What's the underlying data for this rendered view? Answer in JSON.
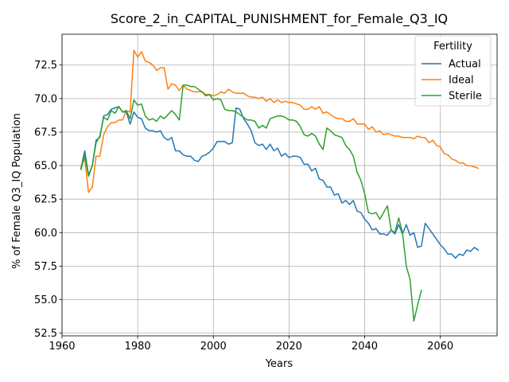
{
  "chart_data": {
    "type": "line",
    "title": "Score_2_in_CAPITAL_PUNISHMENT_for_Female_Q3_IQ",
    "xlabel": "Years",
    "ylabel": "% of Female Q3_IQ Population",
    "xlim": [
      1960,
      2075
    ],
    "ylim": [
      52.3,
      74.8
    ],
    "xticks": [
      1960,
      1980,
      2000,
      2020,
      2040,
      2060
    ],
    "yticks": [
      52.5,
      55.0,
      57.5,
      60.0,
      62.5,
      65.0,
      67.5,
      70.0,
      72.5
    ],
    "ytick_labels": [
      "52.5",
      "55.0",
      "57.5",
      "60.0",
      "62.5",
      "65.0",
      "67.5",
      "70.0",
      "72.5"
    ],
    "grid": true,
    "legend": {
      "title": "Fertility",
      "placement": "top-right"
    },
    "series": [
      {
        "name": "Actual",
        "color": "#1f77b4",
        "x": [
          1965,
          1966,
          1967,
          1968,
          1969,
          1970,
          1971,
          1972,
          1973,
          1974,
          1975,
          1976,
          1977,
          1978,
          1979,
          1980,
          1981,
          1982,
          1983,
          1984,
          1985,
          1986,
          1987,
          1988,
          1989,
          1990,
          1991,
          1992,
          1993,
          1994,
          1995,
          1996,
          1997,
          1998,
          1999,
          2000,
          2001,
          2002,
          2003,
          2004,
          2005,
          2006,
          2007,
          2008,
          2009,
          2010,
          2011,
          2012,
          2013,
          2014,
          2015,
          2016,
          2017,
          2018,
          2019,
          2020,
          2021,
          2022,
          2023,
          2024,
          2025,
          2026,
          2027,
          2028,
          2029,
          2030,
          2031,
          2032,
          2033,
          2034,
          2035,
          2036,
          2037,
          2038,
          2039,
          2040,
          2041,
          2042,
          2043,
          2044,
          2045,
          2046,
          2047,
          2048,
          2049,
          2050,
          2051,
          2052,
          2053,
          2054,
          2055,
          2056,
          2057,
          2058,
          2059,
          2060,
          2061,
          2062,
          2063,
          2064,
          2065,
          2066,
          2067,
          2068,
          2069,
          2070
        ],
        "values": [
          64.8,
          66.1,
          64.3,
          65.0,
          66.9,
          67.1,
          68.7,
          68.8,
          69.2,
          69.3,
          69.4,
          69.0,
          69.0,
          68.1,
          69.0,
          68.6,
          68.5,
          67.8,
          67.6,
          67.6,
          67.5,
          67.6,
          67.1,
          66.9,
          67.1,
          66.1,
          66.1,
          65.8,
          65.7,
          65.7,
          65.4,
          65.3,
          65.7,
          65.8,
          66.0,
          66.3,
          66.8,
          66.8,
          66.8,
          66.6,
          66.7,
          69.3,
          69.2,
          68.5,
          68.1,
          67.6,
          66.7,
          66.5,
          66.6,
          66.2,
          66.6,
          66.1,
          66.3,
          65.7,
          65.9,
          65.6,
          65.7,
          65.7,
          65.6,
          65.1,
          65.1,
          64.6,
          64.8,
          64.0,
          63.9,
          63.4,
          63.4,
          62.8,
          62.9,
          62.2,
          62.4,
          62.1,
          62.4,
          61.6,
          61.5,
          61.0,
          60.7,
          60.2,
          60.3,
          59.9,
          59.9,
          59.8,
          60.2,
          59.9,
          60.6,
          59.9,
          60.6,
          59.8,
          60.0,
          58.9,
          59.0,
          60.7,
          60.3,
          59.9,
          59.5,
          59.1,
          58.8,
          58.4,
          58.4,
          58.1,
          58.4,
          58.3,
          58.7,
          58.6,
          58.9,
          58.7
        ]
      },
      {
        "name": "Ideal",
        "color": "#ff7f0e",
        "x": [
          1965,
          1966,
          1967,
          1968,
          1969,
          1970,
          1971,
          1972,
          1973,
          1974,
          1975,
          1976,
          1977,
          1978,
          1979,
          1980,
          1981,
          1982,
          1983,
          1984,
          1985,
          1986,
          1987,
          1988,
          1989,
          1990,
          1991,
          1992,
          1993,
          1994,
          1995,
          1996,
          1997,
          1998,
          1999,
          2000,
          2001,
          2002,
          2003,
          2004,
          2005,
          2006,
          2007,
          2008,
          2009,
          2010,
          2011,
          2012,
          2013,
          2014,
          2015,
          2016,
          2017,
          2018,
          2019,
          2020,
          2021,
          2022,
          2023,
          2024,
          2025,
          2026,
          2027,
          2028,
          2029,
          2030,
          2031,
          2032,
          2033,
          2034,
          2035,
          2036,
          2037,
          2038,
          2039,
          2040,
          2041,
          2042,
          2043,
          2044,
          2045,
          2046,
          2047,
          2048,
          2049,
          2050,
          2051,
          2052,
          2053,
          2054,
          2055,
          2056,
          2057,
          2058,
          2059,
          2060,
          2061,
          2062,
          2063,
          2064,
          2065,
          2066,
          2067,
          2068,
          2069,
          2070
        ],
        "values": [
          65.0,
          65.5,
          63.0,
          63.4,
          65.7,
          65.7,
          67.3,
          67.9,
          68.2,
          68.2,
          68.4,
          68.4,
          69.1,
          69.0,
          73.6,
          73.1,
          73.5,
          72.8,
          72.7,
          72.5,
          72.1,
          72.3,
          72.3,
          70.7,
          71.1,
          71.0,
          70.6,
          71.0,
          70.7,
          70.6,
          70.5,
          70.5,
          70.5,
          70.3,
          70.3,
          70.2,
          70.3,
          70.5,
          70.4,
          70.7,
          70.5,
          70.4,
          70.4,
          70.4,
          70.2,
          70.1,
          70.1,
          70.0,
          70.1,
          69.8,
          70.0,
          69.7,
          69.9,
          69.7,
          69.8,
          69.7,
          69.7,
          69.6,
          69.5,
          69.2,
          69.2,
          69.4,
          69.2,
          69.4,
          68.9,
          69.0,
          68.8,
          68.6,
          68.5,
          68.5,
          68.3,
          68.3,
          68.5,
          68.1,
          68.1,
          68.1,
          67.7,
          67.9,
          67.5,
          67.6,
          67.3,
          67.4,
          67.3,
          67.2,
          67.2,
          67.1,
          67.1,
          67.1,
          67.0,
          67.2,
          67.1,
          67.1,
          66.7,
          66.9,
          66.5,
          66.4,
          65.9,
          65.8,
          65.5,
          65.4,
          65.2,
          65.2,
          65.0,
          65.0,
          64.9,
          64.8
        ]
      },
      {
        "name": "Sterile",
        "color": "#2ca02c",
        "x": [
          1965,
          1966,
          1967,
          1968,
          1969,
          1970,
          1971,
          1972,
          1973,
          1974,
          1975,
          1976,
          1977,
          1978,
          1979,
          1980,
          1981,
          1982,
          1983,
          1984,
          1985,
          1986,
          1987,
          1988,
          1989,
          1990,
          1991,
          1992,
          1993,
          1994,
          1995,
          1996,
          1997,
          1998,
          1999,
          2000,
          2001,
          2002,
          2003,
          2004,
          2005,
          2006,
          2007,
          2008,
          2009,
          2010,
          2011,
          2012,
          2013,
          2014,
          2015,
          2016,
          2017,
          2018,
          2019,
          2020,
          2021,
          2022,
          2023,
          2024,
          2025,
          2026,
          2027,
          2028,
          2029,
          2030,
          2031,
          2032,
          2033,
          2034,
          2035,
          2036,
          2037,
          2038,
          2039,
          2040,
          2041,
          2042,
          2043,
          2044,
          2045,
          2046,
          2047,
          2048,
          2049,
          2050,
          2051,
          2052,
          2053,
          2054,
          2055
        ],
        "values": [
          64.7,
          65.8,
          64.2,
          65.0,
          66.7,
          67.2,
          68.6,
          68.4,
          69.1,
          68.9,
          69.4,
          69.0,
          69.1,
          68.5,
          69.9,
          69.5,
          69.6,
          68.7,
          68.4,
          68.5,
          68.3,
          68.7,
          68.5,
          68.8,
          69.1,
          68.8,
          68.4,
          71.0,
          71.0,
          70.9,
          70.9,
          70.7,
          70.5,
          70.2,
          70.3,
          69.9,
          70.0,
          69.9,
          69.2,
          69.1,
          69.1,
          69.0,
          68.8,
          68.6,
          68.4,
          68.4,
          68.3,
          67.8,
          68.0,
          67.8,
          68.5,
          68.6,
          68.7,
          68.7,
          68.6,
          68.4,
          68.4,
          68.3,
          67.9,
          67.3,
          67.2,
          67.4,
          67.2,
          66.6,
          66.2,
          67.8,
          67.6,
          67.3,
          67.2,
          67.1,
          66.5,
          66.2,
          65.7,
          64.5,
          63.9,
          62.9,
          61.5,
          61.4,
          61.5,
          61.0,
          61.5,
          62.0,
          60.2,
          60.0,
          61.1,
          60.0,
          57.5,
          56.5,
          53.4,
          54.6,
          55.7
        ]
      }
    ]
  }
}
